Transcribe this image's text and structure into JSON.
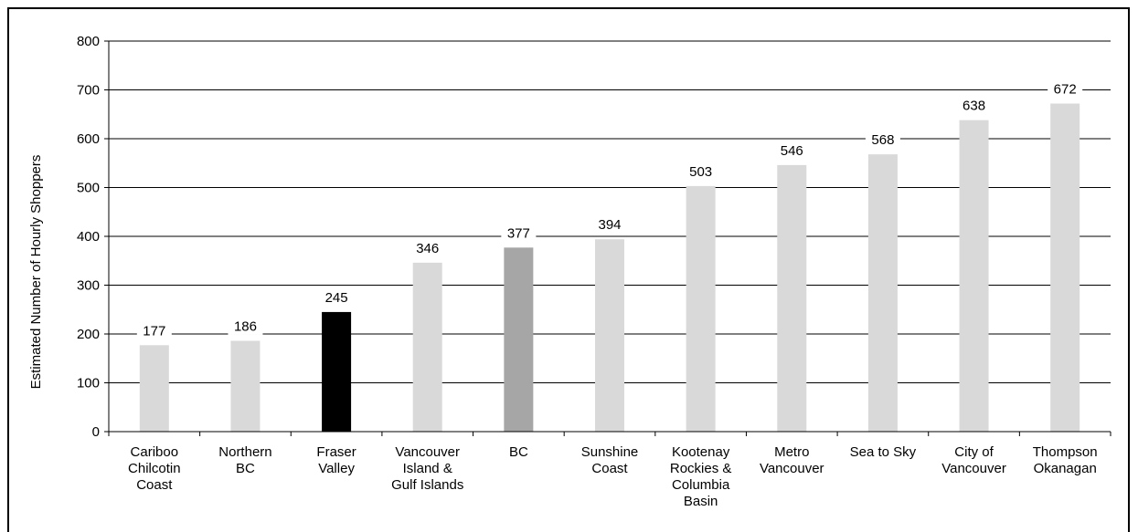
{
  "chart_data": {
    "type": "bar",
    "title": "",
    "xlabel": "",
    "ylabel": "Estimated Number of Hourly Shoppers",
    "ylim": [
      0,
      800
    ],
    "yticks": [
      0,
      100,
      200,
      300,
      400,
      500,
      600,
      700,
      800
    ],
    "grid": true,
    "legend": "none",
    "categories": [
      "Cariboo\nChilcotin\nCoast",
      "Northern\nBC",
      "Fraser\nValley",
      "Vancouver\nIsland &\nGulf Islands",
      "BC",
      "Sunshine\nCoast",
      "Kootenay\nRockies &\nColumbia\nBasin",
      "Metro\nVancouver",
      "Sea to Sky",
      "City of\nVancouver",
      "Thompson\nOkanagan"
    ],
    "values": [
      177,
      186,
      245,
      346,
      377,
      394,
      503,
      546,
      568,
      638,
      672
    ],
    "bar_colors": [
      "#d9d9d9",
      "#d9d9d9",
      "#000000",
      "#d9d9d9",
      "#a6a6a6",
      "#d9d9d9",
      "#d9d9d9",
      "#d9d9d9",
      "#d9d9d9",
      "#d9d9d9",
      "#d9d9d9"
    ]
  }
}
